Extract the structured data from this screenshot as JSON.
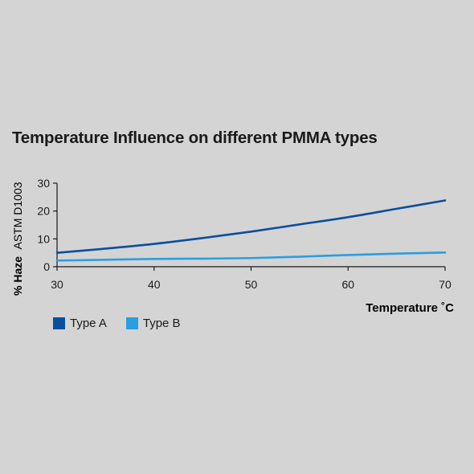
{
  "chart_data": {
    "type": "line",
    "title": "Temperature Influence on different PMMA types",
    "xlabel": "Temperature ˚C",
    "ylabel_bold": "% Haze",
    "ylabel_regular": "ASTM D1003",
    "xlim": [
      30,
      70
    ],
    "ylim": [
      0,
      30
    ],
    "x_ticks": [
      30,
      40,
      50,
      60,
      70
    ],
    "y_ticks": [
      0,
      10,
      20,
      30
    ],
    "grid": false,
    "legend_position": "bottom-left",
    "series": [
      {
        "name": "Type A",
        "color": "#0a4f9e",
        "x": [
          30,
          35,
          40,
          45,
          50,
          55,
          60,
          65,
          70
        ],
        "y": [
          5.0,
          6.5,
          8.2,
          10.3,
          12.6,
          15.2,
          17.8,
          20.8,
          23.8
        ]
      },
      {
        "name": "Type B",
        "color": "#2a9ee0",
        "x": [
          30,
          35,
          40,
          45,
          50,
          55,
          60,
          65,
          70
        ],
        "y": [
          2.2,
          2.5,
          2.8,
          2.9,
          3.1,
          3.6,
          4.2,
          4.7,
          5.1
        ]
      }
    ]
  }
}
